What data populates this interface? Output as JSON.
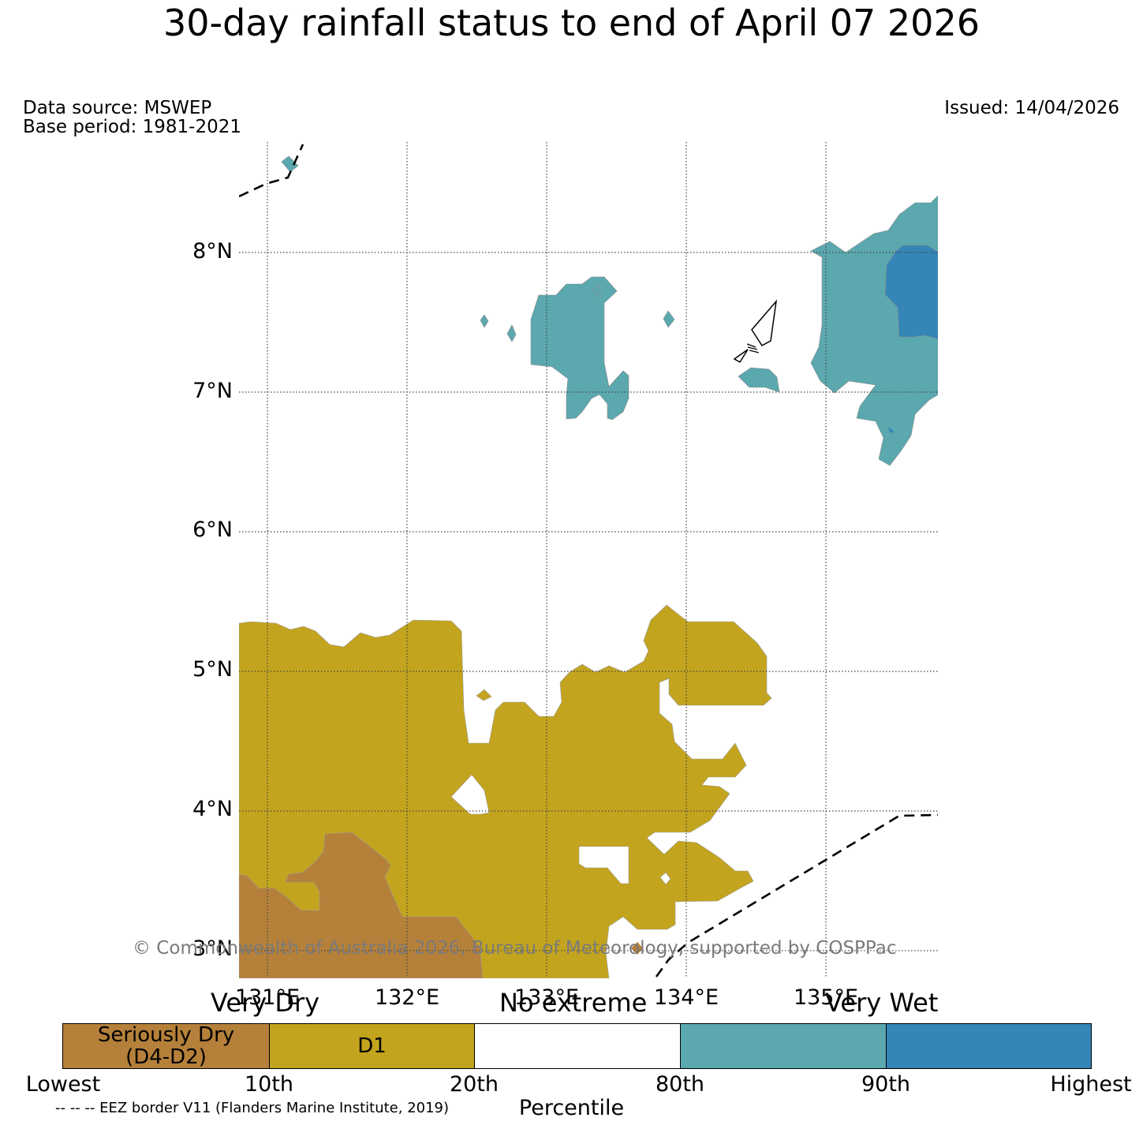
{
  "title": "30-day rainfall status to end of April 07 2026",
  "data_source": "Data source: MSWEP",
  "base_period": "Base period: 1981-2021",
  "issued": "Issued: 14/04/2026",
  "copyright": "© Commonwealth of Australia 2026, Bureau of Meteorology, supported by COSPPac",
  "eez_note": "-- -- -- EEZ border V11 (Flanders Marine Institute, 2019)",
  "map": {
    "lat_ticks": [
      "8°N",
      "7°N",
      "6°N",
      "5°N",
      "4°N",
      "3°N"
    ],
    "lon_ticks": [
      "131°E",
      "132°E",
      "133°E",
      "134°E",
      "135°E"
    ]
  },
  "legend": {
    "top_labels": {
      "very_dry": "Very Dry",
      "no_extreme": "No extreme",
      "very_wet": "Very Wet"
    },
    "segments": [
      {
        "label": "Seriously Dry\n(D4-D2)",
        "color": "#b5803a"
      },
      {
        "label": "D1",
        "color": "#c3a41e"
      },
      {
        "label": "",
        "color": "#ffffff"
      },
      {
        "label": "",
        "color": "#5ba8af"
      },
      {
        "label": "",
        "color": "#3585b7"
      }
    ],
    "percentiles": [
      "Lowest",
      "10th",
      "20th",
      "80th",
      "90th",
      "Highest"
    ],
    "axis_label": "Percentile"
  },
  "colors": {
    "seriously_dry": "#b5803a",
    "d1": "#c3a41e",
    "very_wet_80": "#5ba8af",
    "very_wet_90": "#3585b7",
    "gridline": "#444444",
    "copyright_text": "#7a7a7a"
  }
}
